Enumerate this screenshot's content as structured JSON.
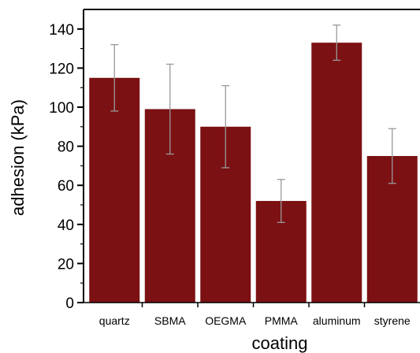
{
  "chart_data": {
    "type": "bar",
    "categories": [
      "quartz",
      "SBMA",
      "OEGMA",
      "PMMA",
      "aluminum",
      "styrene"
    ],
    "values": [
      115,
      99,
      90,
      52,
      133,
      75
    ],
    "error_low": [
      98,
      76,
      69,
      41,
      124,
      61
    ],
    "error_high": [
      132,
      122,
      111,
      63,
      142,
      89
    ],
    "xlabel": "coating",
    "ylabel": "adhesion (kPa)",
    "ylim": [
      0,
      150
    ],
    "yticks": [
      0,
      20,
      40,
      60,
      80,
      100,
      120,
      140
    ],
    "grid": false,
    "colors": {
      "bar": "#7b1113",
      "error_bar": "#9a9a9a",
      "axis": "#000000"
    }
  }
}
